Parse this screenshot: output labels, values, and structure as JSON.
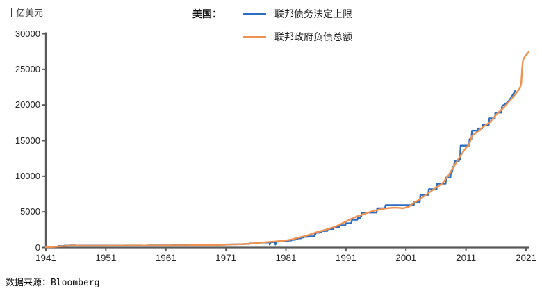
{
  "footer": {
    "source": "数据来源：Bloomberg"
  },
  "chart_data": {
    "type": "line",
    "title": "",
    "unit_label": "十亿美元",
    "legend_prefix": "美国：",
    "xlabel": "",
    "ylabel": "十亿美元",
    "xlim": [
      1941,
      2021
    ],
    "ylim": [
      0,
      30000
    ],
    "xticks": [
      1941,
      1951,
      1961,
      1971,
      1981,
      1991,
      2001,
      2011,
      2021
    ],
    "yticks": [
      0,
      5000,
      10000,
      15000,
      20000,
      25000,
      30000
    ],
    "grid": false,
    "legend_position": "top-center",
    "axis_color": "#595959",
    "series": [
      {
        "id": "debt-limit",
        "name": "联邦债务法定上限",
        "color": "#2b6dc0",
        "points": [
          [
            1941,
            65
          ],
          [
            1941.9,
            65
          ],
          [
            1942.1,
            125
          ],
          [
            1942.9,
            125
          ],
          [
            1943.1,
            210
          ],
          [
            1943.9,
            210
          ],
          [
            1944.1,
            260
          ],
          [
            1944.9,
            260
          ],
          [
            1945.1,
            300
          ],
          [
            1945.9,
            300
          ],
          [
            1946.1,
            275
          ],
          [
            1953.9,
            275
          ],
          [
            1954,
            281
          ],
          [
            1955.9,
            281
          ],
          [
            1956,
            278
          ],
          [
            1956.9,
            278
          ],
          [
            1957,
            275
          ],
          [
            1957.9,
            275
          ],
          [
            1958,
            288
          ],
          [
            1958.9,
            288
          ],
          [
            1959,
            295
          ],
          [
            1959.9,
            295
          ],
          [
            1960,
            293
          ],
          [
            1960.9,
            293
          ],
          [
            1961,
            298
          ],
          [
            1961.9,
            298
          ],
          [
            1962,
            308
          ],
          [
            1962.9,
            308
          ],
          [
            1963,
            309
          ],
          [
            1963.9,
            309
          ],
          [
            1964,
            324
          ],
          [
            1964.9,
            324
          ],
          [
            1965,
            328
          ],
          [
            1965.9,
            328
          ],
          [
            1966,
            330
          ],
          [
            1966.9,
            330
          ],
          [
            1967,
            336
          ],
          [
            1967.9,
            336
          ],
          [
            1968,
            358
          ],
          [
            1968.9,
            358
          ],
          [
            1969,
            377
          ],
          [
            1969.9,
            377
          ],
          [
            1970,
            395
          ],
          [
            1970.9,
            395
          ],
          [
            1971,
            430
          ],
          [
            1971.9,
            430
          ],
          [
            1972,
            450
          ],
          [
            1972.9,
            450
          ],
          [
            1973,
            465
          ],
          [
            1973.9,
            465
          ],
          [
            1974,
            495
          ],
          [
            1974.9,
            495
          ],
          [
            1975,
            577
          ],
          [
            1975.9,
            577
          ],
          [
            1976,
            682
          ],
          [
            1976.9,
            682
          ],
          [
            1977,
            700
          ],
          [
            1977.9,
            700
          ],
          [
            1978,
            752
          ],
          [
            1978.2,
            752
          ],
          [
            1978.3,
            400
          ],
          [
            1978.45,
            752
          ],
          [
            1978.9,
            752
          ],
          [
            1979,
            798
          ],
          [
            1979.15,
            798
          ],
          [
            1979.25,
            400
          ],
          [
            1979.4,
            798
          ],
          [
            1979.5,
            830
          ],
          [
            1979.9,
            830
          ],
          [
            1980,
            879
          ],
          [
            1980.4,
            879
          ],
          [
            1980.5,
            925
          ],
          [
            1980.9,
            925
          ],
          [
            1981,
            935
          ],
          [
            1981.4,
            935
          ],
          [
            1981.5,
            985
          ],
          [
            1981.9,
            985
          ],
          [
            1982,
            1080
          ],
          [
            1982.5,
            1080
          ],
          [
            1982.6,
            1143
          ],
          [
            1982.9,
            1143
          ],
          [
            1983,
            1290
          ],
          [
            1983.5,
            1290
          ],
          [
            1983.6,
            1389
          ],
          [
            1983.9,
            1389
          ],
          [
            1984,
            1490
          ],
          [
            1984.5,
            1490
          ],
          [
            1984.6,
            1520
          ],
          [
            1984.9,
            1520
          ],
          [
            1985,
            1573
          ],
          [
            1985.7,
            1573
          ],
          [
            1985.8,
            1824
          ],
          [
            1985.9,
            1824
          ],
          [
            1986,
            2079
          ],
          [
            1986.6,
            2079
          ],
          [
            1986.7,
            2111
          ],
          [
            1986.9,
            2111
          ],
          [
            1987,
            2320
          ],
          [
            1987.9,
            2320
          ],
          [
            1988,
            2600
          ],
          [
            1988.9,
            2600
          ],
          [
            1989,
            2870
          ],
          [
            1989.9,
            2870
          ],
          [
            1990,
            3123
          ],
          [
            1990.9,
            3123
          ],
          [
            1991,
            3400
          ],
          [
            1991.9,
            3400
          ],
          [
            1992,
            3900
          ],
          [
            1992.9,
            3900
          ],
          [
            1993,
            4145
          ],
          [
            1993.4,
            4145
          ],
          [
            1993.5,
            4370
          ],
          [
            1993.55,
            4370
          ],
          [
            1993.6,
            4900
          ],
          [
            1996.1,
            4900
          ],
          [
            1996.2,
            5500
          ],
          [
            1997.5,
            5500
          ],
          [
            1997.6,
            5950
          ],
          [
            2002.3,
            5950
          ],
          [
            2002.4,
            6400
          ],
          [
            2003.3,
            6400
          ],
          [
            2003.4,
            7384
          ],
          [
            2004.7,
            7384
          ],
          [
            2004.8,
            8184
          ],
          [
            2006.1,
            8184
          ],
          [
            2006.2,
            8965
          ],
          [
            2007.6,
            8965
          ],
          [
            2007.7,
            9815
          ],
          [
            2008.4,
            9815
          ],
          [
            2008.5,
            10615
          ],
          [
            2008.7,
            10615
          ],
          [
            2008.8,
            11315
          ],
          [
            2009.0,
            11315
          ],
          [
            2009.1,
            12104
          ],
          [
            2009.8,
            12104
          ],
          [
            2009.9,
            12394
          ],
          [
            2010.0,
            12394
          ],
          [
            2010.1,
            14294
          ],
          [
            2011.5,
            14294
          ],
          [
            2011.6,
            15194
          ],
          [
            2011.9,
            15194
          ],
          [
            2012.0,
            16394
          ],
          [
            2012.9,
            16394
          ],
          [
            2013.0,
            16699
          ],
          [
            2013.7,
            16699
          ],
          [
            2013.8,
            17212
          ],
          [
            2014.8,
            17212
          ],
          [
            2014.9,
            18113
          ],
          [
            2015.8,
            18113
          ],
          [
            2015.9,
            18922
          ],
          [
            2016.9,
            18922
          ],
          [
            2017.0,
            19847
          ],
          [
            2017.5,
            20100
          ],
          [
            2018.0,
            20456
          ],
          [
            2018.5,
            21000
          ],
          [
            2019.0,
            21700
          ],
          [
            2019.2,
            21988
          ]
        ]
      },
      {
        "id": "total-debt",
        "name": "联邦政府负债总额",
        "color": "#ee9151",
        "points": [
          [
            1941,
            50
          ],
          [
            1942,
            72
          ],
          [
            1943,
            137
          ],
          [
            1944,
            201
          ],
          [
            1945,
            259
          ],
          [
            1946,
            269
          ],
          [
            1947,
            258
          ],
          [
            1948,
            252
          ],
          [
            1949,
            253
          ],
          [
            1950,
            257
          ],
          [
            1951,
            255
          ],
          [
            1952,
            259
          ],
          [
            1953,
            266
          ],
          [
            1954,
            271
          ],
          [
            1955,
            274
          ],
          [
            1956,
            273
          ],
          [
            1957,
            271
          ],
          [
            1958,
            276
          ],
          [
            1959,
            285
          ],
          [
            1960,
            286
          ],
          [
            1961,
            289
          ],
          [
            1962,
            298
          ],
          [
            1963,
            306
          ],
          [
            1964,
            312
          ],
          [
            1965,
            317
          ],
          [
            1966,
            320
          ],
          [
            1967,
            326
          ],
          [
            1968,
            348
          ],
          [
            1969,
            354
          ],
          [
            1970,
            371
          ],
          [
            1971,
            398
          ],
          [
            1972,
            427
          ],
          [
            1973,
            458
          ],
          [
            1974,
            475
          ],
          [
            1975,
            533
          ],
          [
            1976,
            620
          ],
          [
            1977,
            699
          ],
          [
            1978,
            772
          ],
          [
            1979,
            827
          ],
          [
            1980,
            908
          ],
          [
            1981,
            998
          ],
          [
            1982,
            1142
          ],
          [
            1983,
            1377
          ],
          [
            1984,
            1572
          ],
          [
            1985,
            1823
          ],
          [
            1986,
            2125
          ],
          [
            1987,
            2350
          ],
          [
            1988,
            2602
          ],
          [
            1989,
            2857
          ],
          [
            1990,
            3233
          ],
          [
            1991,
            3665
          ],
          [
            1992,
            4065
          ],
          [
            1993,
            4411
          ],
          [
            1994,
            4693
          ],
          [
            1995,
            4974
          ],
          [
            1996,
            5225
          ],
          [
            1997,
            5413
          ],
          [
            1998,
            5526
          ],
          [
            1999,
            5600
          ],
          [
            2000,
            5560
          ],
          [
            2000.5,
            5500
          ],
          [
            2001,
            5620
          ],
          [
            2001.5,
            5750
          ],
          [
            2002,
            6100
          ],
          [
            2003,
            6600
          ],
          [
            2004,
            7200
          ],
          [
            2005,
            7800
          ],
          [
            2006,
            8400
          ],
          [
            2007,
            8950
          ],
          [
            2008,
            10000
          ],
          [
            2009,
            11400
          ],
          [
            2010,
            12800
          ],
          [
            2011,
            14000
          ],
          [
            2011.5,
            14400
          ],
          [
            2012,
            15700
          ],
          [
            2013,
            16300
          ],
          [
            2014,
            17000
          ],
          [
            2015,
            17600
          ],
          [
            2016,
            18600
          ],
          [
            2017,
            19400
          ],
          [
            2018,
            20300
          ],
          [
            2019,
            21300
          ],
          [
            2019.5,
            21800
          ],
          [
            2020,
            22400
          ],
          [
            2020.2,
            23000
          ],
          [
            2020.35,
            25000
          ],
          [
            2020.5,
            26300
          ],
          [
            2020.8,
            26800
          ],
          [
            2021,
            27000
          ],
          [
            2021.3,
            27250
          ],
          [
            2021.45,
            27450
          ]
        ]
      }
    ]
  }
}
